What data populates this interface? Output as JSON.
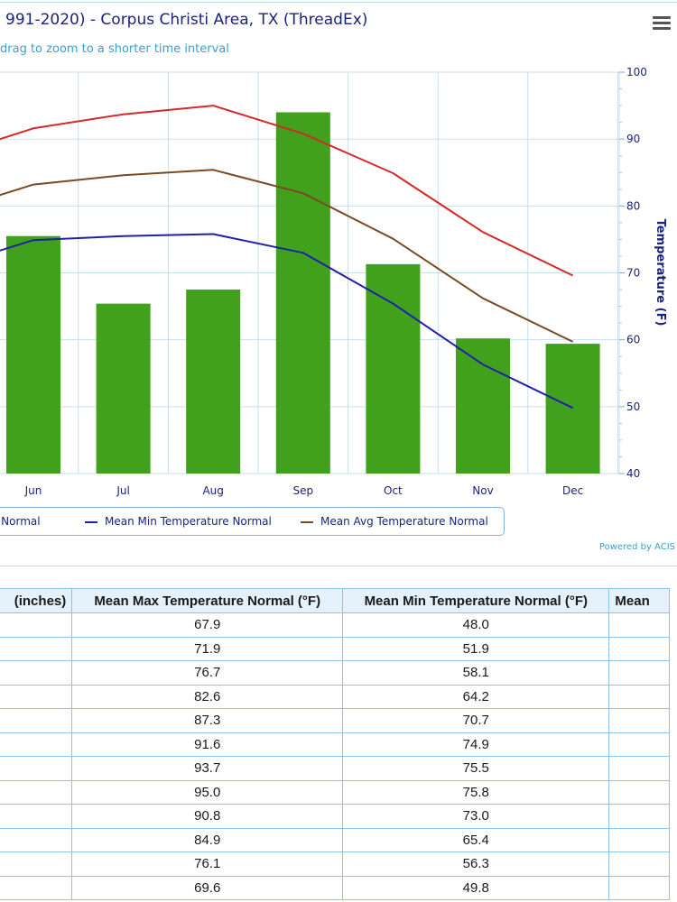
{
  "header": {
    "title": "991-2020) - Corpus Christi Area, TX (ThreadEx)",
    "subtitle": "drag to zoom to a shorter time interval",
    "menu_icon": "hamburger-menu-icon"
  },
  "chart_data": {
    "type": "bar+line",
    "categories": [
      "Jun",
      "Jul",
      "Aug",
      "Sep",
      "Oct",
      "Nov",
      "Dec"
    ],
    "series": [
      {
        "name": "Mean Max Temperature Normal",
        "type": "line",
        "color": "#d42a2a",
        "values": [
          91.6,
          93.7,
          95.0,
          90.8,
          84.9,
          76.1,
          69.6
        ],
        "leading_value": 87.3
      },
      {
        "name": "Mean Min Temperature Normal",
        "type": "line",
        "color": "#1e22a8",
        "values": [
          74.9,
          75.5,
          75.8,
          73.0,
          65.4,
          56.3,
          49.8
        ],
        "leading_value": 70.7
      },
      {
        "name": "Mean Avg Temperature Normal",
        "type": "line",
        "color": "#7b4a23",
        "values": [
          83.2,
          84.6,
          85.4,
          81.9,
          75.1,
          66.2,
          59.7
        ],
        "leading_value": 79.0
      },
      {
        "type": "bar",
        "color": "#41a01c",
        "values": [
          75.5,
          65.4,
          67.5,
          94.0,
          71.3,
          60.2,
          59.4
        ]
      }
    ],
    "y_right": {
      "label": "Temperature (F)",
      "ticks": [
        40,
        50,
        60,
        70,
        80,
        90,
        100
      ],
      "range": [
        40,
        100
      ]
    },
    "legend": {
      "position": "bottom",
      "entries": [
        "ture Normal",
        "Mean Min Temperature Normal",
        "Mean Avg Temperature Normal"
      ]
    },
    "grid": true
  },
  "credits": "Powered by ACIS",
  "table": {
    "headers": [
      "(inches)",
      "Mean Max Temperature Normal (°F)",
      "Mean Min Temperature Normal (°F)",
      "Mean"
    ],
    "rows": [
      [
        "",
        "67.9",
        "48.0",
        ""
      ],
      [
        "",
        "71.9",
        "51.9",
        ""
      ],
      [
        "",
        "76.7",
        "58.1",
        ""
      ],
      [
        "",
        "82.6",
        "64.2",
        ""
      ],
      [
        "",
        "87.3",
        "70.7",
        ""
      ],
      [
        "",
        "91.6",
        "74.9",
        ""
      ],
      [
        "",
        "93.7",
        "75.5",
        ""
      ],
      [
        "",
        "95.0",
        "75.8",
        ""
      ],
      [
        "",
        "90.8",
        "73.0",
        ""
      ],
      [
        "",
        "84.9",
        "65.4",
        ""
      ],
      [
        "",
        "76.1",
        "56.3",
        ""
      ],
      [
        "",
        "69.6",
        "49.8",
        ""
      ]
    ]
  }
}
